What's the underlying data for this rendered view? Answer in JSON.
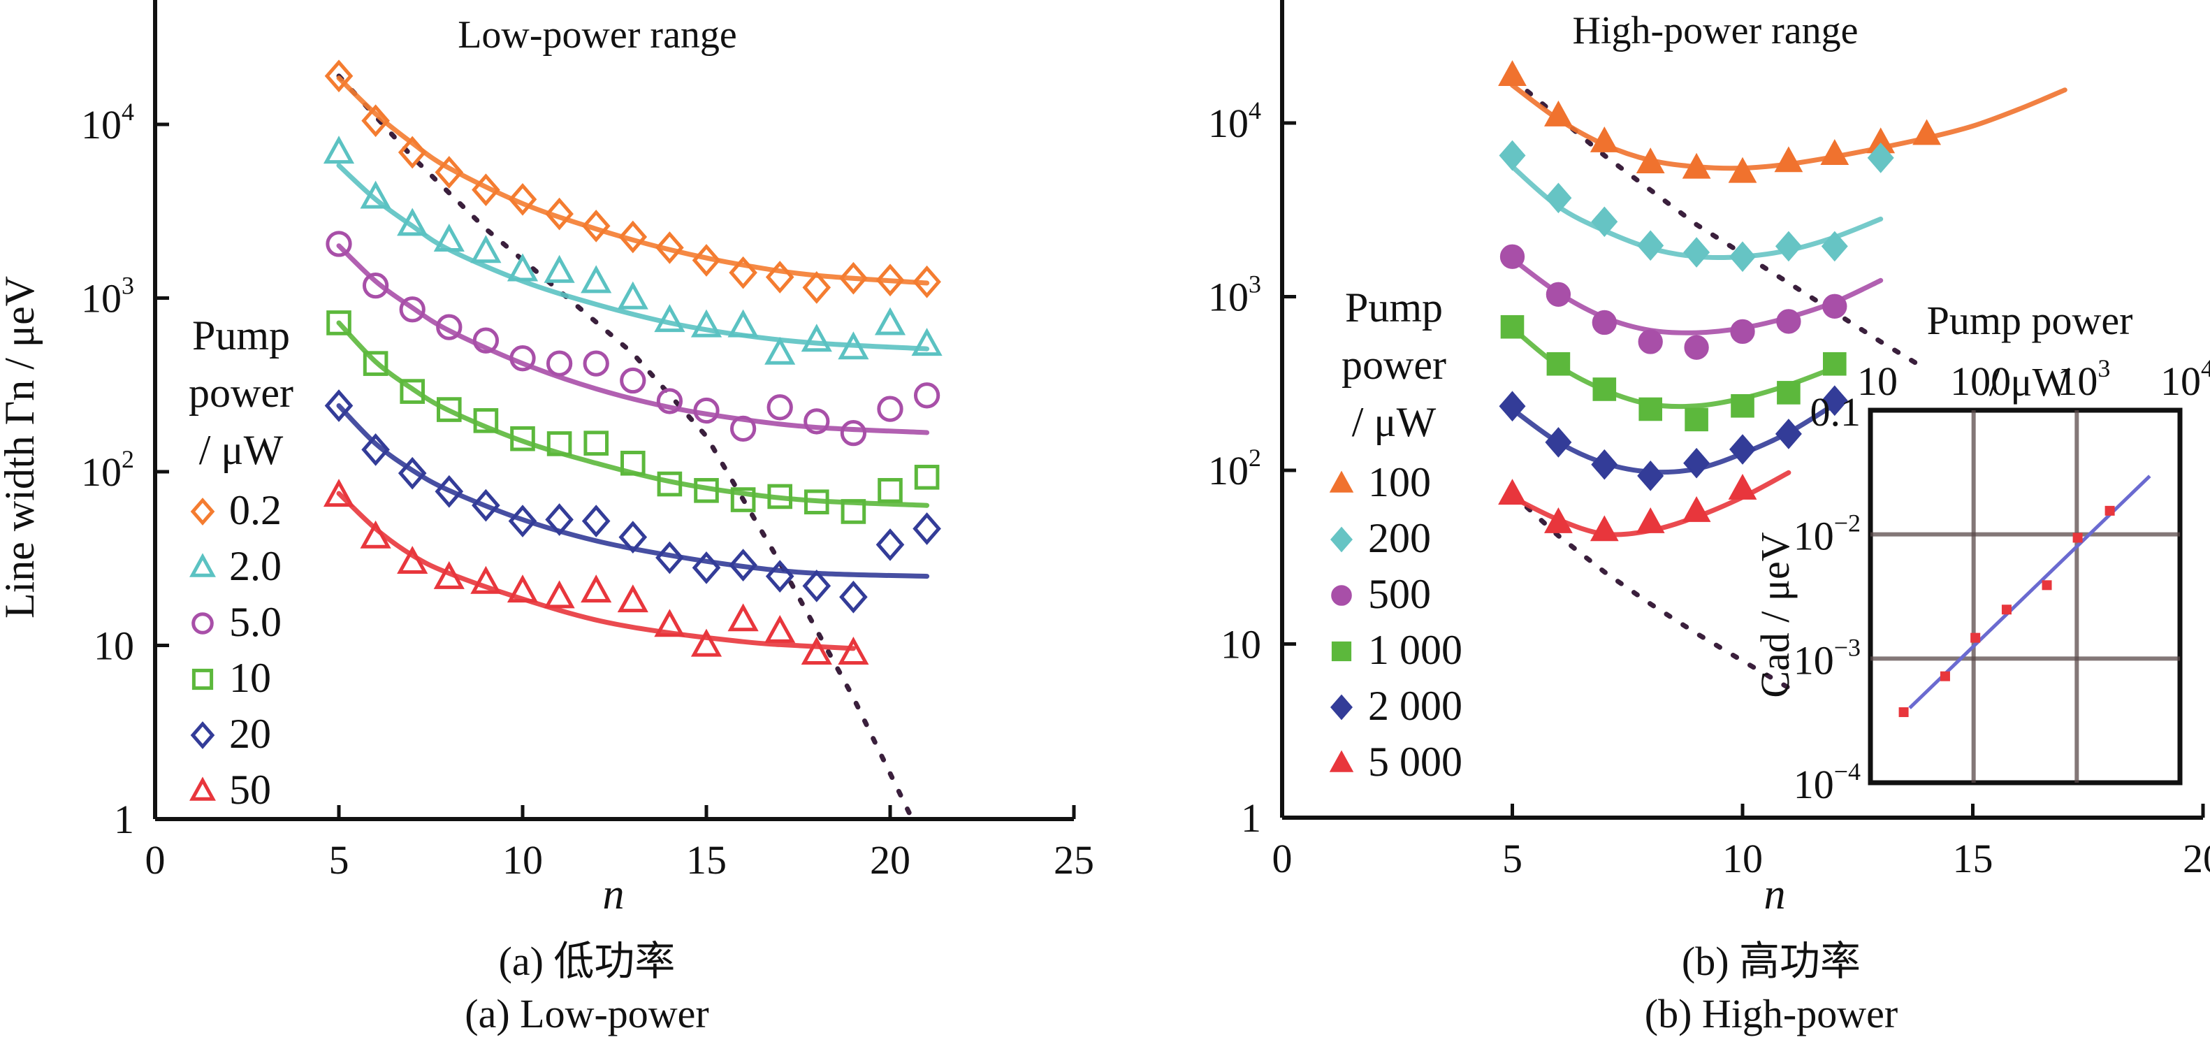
{
  "figure": {
    "caption_a_cn": "(a) 低功率",
    "caption_a_en": "(a) Low-power",
    "caption_b_cn": "(b) 高功率",
    "caption_b_en": "(b) High-power"
  },
  "chart_data": [
    {
      "id": "low-power",
      "type": "scatter",
      "title": "Low-power range",
      "xlabel": "n",
      "ylabel": "Line width Γn / μeV",
      "xlim": [
        0,
        25
      ],
      "xticks": [
        0,
        5,
        10,
        15,
        20,
        25
      ],
      "yscale": "log",
      "ylim": [
        1,
        52000
      ],
      "yticks": [
        {
          "value": 1,
          "label": "1",
          "sup": ""
        },
        {
          "value": 10,
          "label": "10",
          "sup": ""
        },
        {
          "value": 100,
          "label": "10",
          "sup": "2"
        },
        {
          "value": 1000,
          "label": "10",
          "sup": "3"
        },
        {
          "value": 10000,
          "label": "10",
          "sup": "4"
        }
      ],
      "grid": false,
      "legend": {
        "title_lines": [
          "Pump",
          "power",
          "/ μW"
        ],
        "position": "left"
      },
      "reference_line": {
        "style": "dotted",
        "color": "#3a1f3c",
        "x": [
          5,
          7,
          9,
          11,
          13,
          15,
          17,
          19,
          20.6
        ],
        "y": [
          19000,
          6500,
          2500,
          1100,
          480,
          160,
          30,
          5,
          1
        ]
      },
      "series": [
        {
          "name": "0.2",
          "marker": "open-diamond",
          "color": "#f47c30",
          "x": [
            5,
            6,
            7,
            8,
            9,
            10,
            11,
            12,
            13,
            14,
            15,
            16,
            17,
            18,
            19,
            20,
            21
          ],
          "y": [
            19000,
            10500,
            6900,
            5300,
            4200,
            3700,
            3050,
            2600,
            2250,
            1950,
            1650,
            1400,
            1320,
            1150,
            1300,
            1270,
            1240
          ],
          "fit_x": [
            5,
            6,
            7,
            8,
            10,
            12,
            14,
            16,
            18,
            21
          ],
          "fit_y": [
            18500,
            11500,
            7800,
            5600,
            3500,
            2500,
            1900,
            1550,
            1350,
            1220
          ]
        },
        {
          "name": "2.0",
          "marker": "open-triangle",
          "color": "#5bc2c2",
          "x": [
            5,
            6,
            7,
            8,
            9,
            10,
            11,
            12,
            13,
            14,
            15,
            16,
            17,
            18,
            19,
            20,
            21
          ],
          "y": [
            6900,
            3800,
            2650,
            2150,
            1850,
            1450,
            1420,
            1240,
            1000,
            740,
            690,
            690,
            480,
            570,
            515,
            710,
            540
          ],
          "fit_x": [
            5,
            6,
            7,
            8,
            10,
            12,
            14,
            16,
            18,
            21
          ],
          "fit_y": [
            5800,
            3700,
            2600,
            1900,
            1250,
            920,
            720,
            610,
            550,
            510
          ]
        },
        {
          "name": "5.0",
          "marker": "open-circle",
          "color": "#a84fa8",
          "x": [
            5,
            6,
            7,
            8,
            9,
            10,
            11,
            12,
            13,
            14,
            15,
            16,
            17,
            18,
            19,
            20,
            21
          ],
          "y": [
            2050,
            1180,
            860,
            680,
            570,
            450,
            420,
            420,
            335,
            255,
            225,
            177,
            235,
            195,
            167,
            230,
            275
          ],
          "fit_x": [
            5,
            6,
            7,
            8,
            10,
            12,
            14,
            16,
            18,
            21
          ],
          "fit_y": [
            2000,
            1250,
            880,
            650,
            420,
            300,
            235,
            200,
            180,
            168
          ]
        },
        {
          "name": "10",
          "marker": "open-square",
          "color": "#5cb83c",
          "x": [
            5,
            6,
            7,
            8,
            9,
            10,
            11,
            12,
            13,
            14,
            15,
            16,
            17,
            18,
            19,
            20,
            21
          ],
          "y": [
            720,
            420,
            290,
            228,
            197,
            155,
            145,
            146,
            112,
            85,
            78,
            69,
            72,
            67,
            59,
            78,
            93
          ],
          "fit_x": [
            5,
            6,
            7,
            8,
            10,
            12,
            14,
            16,
            18,
            21
          ],
          "fit_y": [
            720,
            430,
            300,
            225,
            150,
            112,
            88,
            75,
            68,
            64
          ]
        },
        {
          "name": "20",
          "marker": "open-diamond",
          "color": "#333c98",
          "x": [
            5,
            6,
            7,
            8,
            9,
            10,
            11,
            12,
            13,
            14,
            15,
            16,
            17,
            18,
            19,
            20,
            21
          ],
          "y": [
            240,
            134,
            98,
            77,
            64,
            52,
            53,
            52,
            42,
            32,
            28,
            29,
            25,
            22,
            19,
            38,
            47
          ],
          "fit_x": [
            5,
            6,
            7,
            8,
            10,
            12,
            14,
            16,
            18,
            21
          ],
          "fit_y": [
            240,
            145,
            102,
            78,
            53,
            40,
            33,
            28.5,
            26,
            25
          ]
        },
        {
          "name": "50",
          "marker": "open-triangle",
          "color": "#e8363c",
          "x": [
            5,
            6,
            7,
            8,
            9,
            10,
            11,
            12,
            13,
            14,
            15,
            16,
            17,
            18,
            19
          ],
          "y": [
            73,
            42,
            30,
            24.5,
            23,
            20.5,
            19,
            20.5,
            18,
            13,
            10,
            14,
            12,
            9,
            9
          ],
          "fit_x": [
            5,
            6,
            7,
            8,
            10,
            12,
            14,
            16,
            17,
            19
          ],
          "fit_y": [
            75,
            47,
            33,
            26,
            18.5,
            14,
            11.8,
            10.5,
            10.1,
            9.6
          ]
        }
      ]
    },
    {
      "id": "high-power",
      "type": "scatter",
      "title": "High-power range",
      "xlabel": "n",
      "ylabel": "",
      "xlim": [
        0,
        20
      ],
      "xticks": [
        0,
        5,
        10,
        15,
        20
      ],
      "yscale": "log",
      "ylim": [
        1,
        52000
      ],
      "yticks": [
        {
          "value": 1,
          "label": "1",
          "sup": ""
        },
        {
          "value": 10,
          "label": "10",
          "sup": ""
        },
        {
          "value": 100,
          "label": "10",
          "sup": "2"
        },
        {
          "value": 1000,
          "label": "10",
          "sup": "3"
        },
        {
          "value": 10000,
          "label": "10",
          "sup": "4"
        }
      ],
      "grid": false,
      "legend": {
        "title_lines": [
          "Pump",
          "power",
          "/ μW"
        ],
        "position": "left"
      },
      "reference_line": {
        "style": "dotted",
        "color": "#3a1f3c",
        "x": [
          5,
          7,
          9,
          11,
          13,
          14
        ],
        "y": [
          18000,
          6500,
          2600,
          1200,
          550,
          380
        ],
        "x2": [
          5,
          6,
          7,
          8,
          9,
          10,
          11
        ],
        "y2": [
          73,
          42,
          26,
          17,
          11.5,
          8,
          5.6
        ]
      },
      "series": [
        {
          "name": "100",
          "marker": "filled-triangle",
          "color": "#f0722e",
          "x": [
            5,
            6,
            7,
            8,
            9,
            10,
            11,
            12,
            13,
            14
          ],
          "y": [
            18800,
            11000,
            7800,
            5900,
            5500,
            5200,
            6000,
            6600,
            7700,
            8600
          ],
          "fit_x": [
            5,
            6,
            7,
            8,
            9,
            10,
            11,
            12,
            13,
            14,
            15,
            16,
            17
          ],
          "fit_y": [
            16500,
            10500,
            7500,
            6100,
            5600,
            5500,
            5800,
            6400,
            7200,
            8200,
            9600,
            12000,
            15500
          ]
        },
        {
          "name": "200",
          "marker": "filled-diamond",
          "color": "#66c4c4",
          "x": [
            5,
            6,
            7,
            8,
            9,
            10,
            11,
            12,
            13
          ],
          "y": [
            6500,
            3700,
            2700,
            1970,
            1800,
            1700,
            1950,
            1950,
            6300
          ],
          "fit_x": [
            5,
            6,
            7,
            8,
            9,
            10,
            11,
            12,
            13
          ],
          "fit_y": [
            5600,
            3300,
            2400,
            1900,
            1700,
            1700,
            1850,
            2200,
            2800
          ]
        },
        {
          "name": "500",
          "marker": "filled-circle",
          "color": "#a84fa8",
          "x": [
            5,
            6,
            7,
            8,
            9,
            10,
            11,
            12
          ],
          "y": [
            1700,
            1030,
            710,
            550,
            510,
            630,
            720,
            880
          ],
          "fit_x": [
            5,
            6,
            7,
            8,
            9,
            10,
            11,
            12,
            13
          ],
          "fit_y": [
            1650,
            1050,
            760,
            640,
            620,
            660,
            760,
            930,
            1240
          ]
        },
        {
          "name": "1 000",
          "marker": "filled-square",
          "color": "#5cb83c",
          "x": [
            5,
            6,
            7,
            8,
            9,
            10,
            11,
            12
          ],
          "y": [
            670,
            410,
            293,
            225,
            196,
            235,
            280,
            410
          ],
          "fit_x": [
            5,
            6,
            7,
            8,
            9,
            10,
            11,
            12
          ],
          "fit_y": [
            660,
            400,
            290,
            240,
            235,
            260,
            310,
            390
          ]
        },
        {
          "name": "2 000",
          "marker": "filled-diamond",
          "color": "#333c98",
          "x": [
            5,
            6,
            7,
            8,
            9,
            10,
            11,
            12
          ],
          "y": [
            234,
            145,
            108,
            93,
            110,
            132,
            162,
            252
          ],
          "fit_x": [
            5,
            6,
            7,
            8,
            9,
            10,
            11,
            12
          ],
          "fit_y": [
            225,
            145,
            110,
            98,
            102,
            125,
            165,
            240
          ]
        },
        {
          "name": "5 000",
          "marker": "filled-triangle",
          "color": "#e8363c",
          "x": [
            5,
            6,
            7,
            8,
            9,
            10
          ],
          "y": [
            73,
            50,
            45,
            50,
            58,
            78
          ],
          "fit_x": [
            5,
            6,
            7,
            8,
            9,
            10,
            11
          ],
          "fit_y": [
            70,
            52,
            43,
            45,
            54,
            70,
            97
          ]
        }
      ],
      "inset": {
        "type": "scatter",
        "xlabel_lines": [
          "Pump power",
          "/ μW"
        ],
        "ylabel": "Cad / μeV",
        "xscale": "log",
        "yscale": "log",
        "xlim": [
          10,
          10000
        ],
        "ylim": [
          0.0001,
          0.1
        ],
        "xticks": [
          {
            "value": 10,
            "label": "10",
            "sup": ""
          },
          {
            "value": 100,
            "label": "100",
            "sup": ""
          },
          {
            "value": 1000,
            "label": "10",
            "sup": "3"
          },
          {
            "value": 10000,
            "label": "10",
            "sup": "4"
          }
        ],
        "yticks": [
          {
            "value": 0.1,
            "label": "0.1",
            "sup": ""
          },
          {
            "value": 0.01,
            "label": "10",
            "sup": "−2"
          },
          {
            "value": 0.001,
            "label": "10",
            "sup": "−3"
          },
          {
            "value": 0.0001,
            "label": "10",
            "sup": "−4"
          }
        ],
        "grid": true,
        "gridlines_x": [
          100,
          1000
        ],
        "gridlines_y": [
          0.01,
          0.001
        ],
        "points": {
          "color": "#e8363c",
          "x": [
            21,
            53,
            104,
            209,
            513,
            1020,
            2090
          ],
          "y": [
            0.00037,
            0.00072,
            0.00147,
            0.00248,
            0.0039,
            0.0094,
            0.0155
          ]
        },
        "fit": {
          "color": "#6a6ad0",
          "x": [
            24,
            5100
          ],
          "y": [
            0.0004,
            0.0295
          ]
        }
      }
    }
  ]
}
